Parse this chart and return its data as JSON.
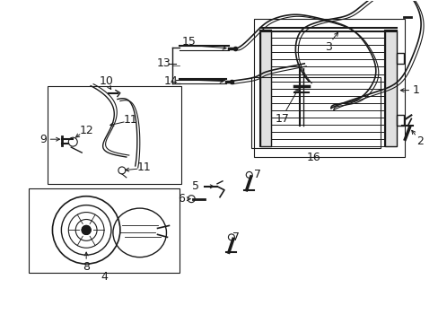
{
  "bg_color": "#ffffff",
  "fig_width": 4.89,
  "fig_height": 3.6,
  "dpi": 100,
  "line_color": "#1a1a1a",
  "font_size": 8.5
}
